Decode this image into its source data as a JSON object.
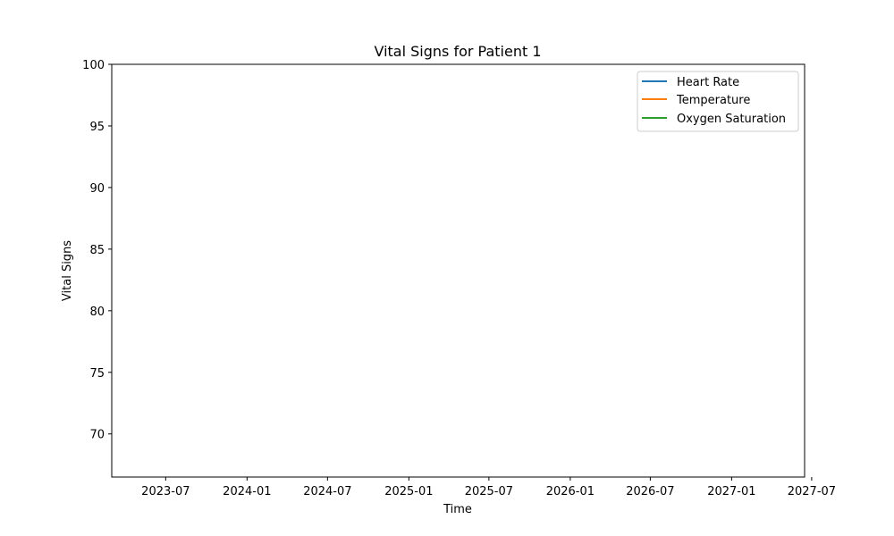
{
  "chart_data": {
    "type": "line",
    "title": "Vital Signs for Patient 1",
    "xlabel": "Time",
    "ylabel": "Vital Signs",
    "ylim": [
      66.5,
      100
    ],
    "xlim": [
      "2023-03-01",
      "2027-06-15"
    ],
    "y_ticks": [
      70,
      75,
      80,
      85,
      90,
      95,
      100
    ],
    "x_ticks": [
      "2023-07",
      "2024-01",
      "2024-07",
      "2025-01",
      "2025-07",
      "2026-01",
      "2026-07",
      "2027-01",
      "2027-07"
    ],
    "grid": false,
    "legend_position": "top-right",
    "series": [
      {
        "name": "Heart Rate",
        "color": "#1f77b4",
        "x": [],
        "y": []
      },
      {
        "name": "Temperature",
        "color": "#ff7f0e",
        "x": [],
        "y": []
      },
      {
        "name": "Oxygen Saturation",
        "color": "#2ca02c",
        "x": [],
        "y": []
      }
    ]
  }
}
